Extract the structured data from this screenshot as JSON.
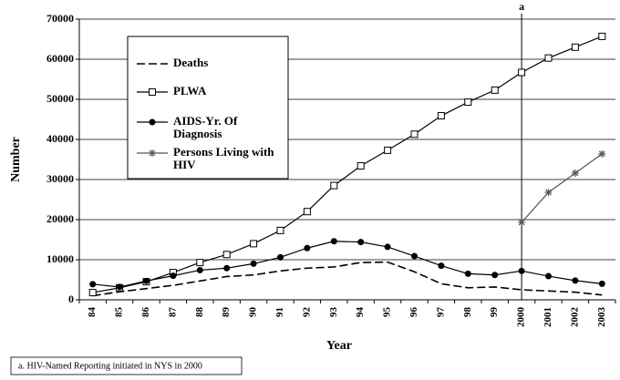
{
  "chart_data": {
    "type": "line",
    "y_label": "Number",
    "x_label": "Year",
    "categories": [
      "84",
      "85",
      "86",
      "87",
      "88",
      "89",
      "90",
      "91",
      "92",
      "93",
      "94",
      "95",
      "96",
      "97",
      "98",
      "99",
      "2000",
      "2001",
      "2002",
      "2003"
    ],
    "series": [
      {
        "name": "Deaths",
        "color": "#000000",
        "dash": true,
        "marker": null,
        "values": [
          1000,
          2000,
          2800,
          3600,
          4700,
          5800,
          6200,
          7200,
          7900,
          8200,
          9300,
          9400,
          7000,
          4000,
          3000,
          3200,
          2500,
          2200,
          1900,
          1200
        ]
      },
      {
        "name": "PLWA",
        "color": "#000000",
        "dash": false,
        "marker": "square",
        "values": [
          1800,
          3000,
          4500,
          6800,
          9300,
          11300,
          14000,
          17300,
          22000,
          28500,
          33400,
          37300,
          41300,
          45900,
          49300,
          52300,
          56700,
          60300,
          63000,
          65700
        ]
      },
      {
        "name": "AIDS-Yr. Of Diagnosis",
        "color": "#000000",
        "dash": false,
        "marker": "circle",
        "values": [
          3900,
          3200,
          4700,
          6000,
          7400,
          7900,
          9000,
          10600,
          12900,
          14600,
          14400,
          13200,
          10900,
          8500,
          6500,
          6200,
          7200,
          5900,
          4800,
          4000
        ]
      },
      {
        "name": "Persons Living with HIV",
        "color": "#555555",
        "dash": false,
        "marker": "star",
        "values": [
          null,
          null,
          null,
          null,
          null,
          null,
          null,
          null,
          null,
          null,
          null,
          null,
          null,
          null,
          null,
          null,
          19300,
          26800,
          31600,
          36400
        ]
      }
    ],
    "ylim": [
      0,
      70000
    ],
    "yticks": [
      0,
      10000,
      20000,
      30000,
      40000,
      50000,
      60000,
      70000
    ],
    "grid": true,
    "annotation": {
      "text": "a",
      "x": "2000"
    },
    "footnote": "a.  HIV-Named Reporting initiated in NYS in 2000"
  }
}
